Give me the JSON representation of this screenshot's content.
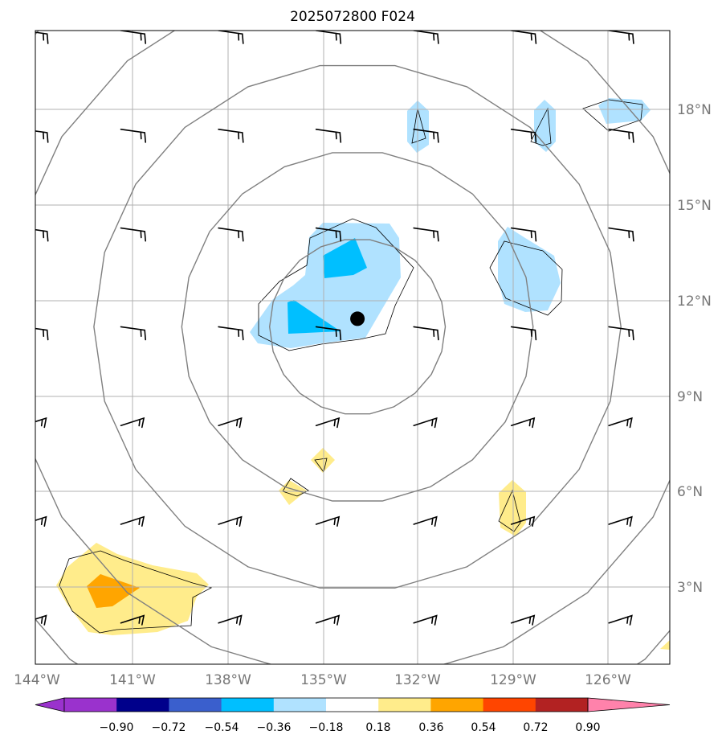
{
  "title": "2025072800 F024",
  "map": {
    "lon_range": [
      -144,
      -124.5
    ],
    "lat_range": [
      0.25,
      19.5
    ],
    "lon_ticks": [
      {
        "value": -144,
        "label": "144°W"
      },
      {
        "value": -141,
        "label": "141°W"
      },
      {
        "value": -138,
        "label": "138°W"
      },
      {
        "value": -135,
        "label": "135°W"
      },
      {
        "value": -132,
        "label": "132°W"
      },
      {
        "value": -129,
        "label": "129°W"
      },
      {
        "value": -126,
        "label": "126°W"
      }
    ],
    "lat_ticks": [
      {
        "value": 3,
        "label": "3°N"
      },
      {
        "value": 6,
        "label": "6°N"
      },
      {
        "value": 9,
        "label": "9°N"
      },
      {
        "value": 12,
        "label": "12°N"
      },
      {
        "value": 15,
        "label": "15°N"
      },
      {
        "value": 18,
        "label": "18°N"
      }
    ],
    "gridlines": true,
    "center_marker": {
      "lon": -134.1,
      "lat": 10.5
    },
    "range_rings_deg": [
      2.7,
      5.4,
      8.1,
      10.8,
      13.5
    ],
    "range_ring_color": "#808080",
    "wind_barb_lons": [
      -144,
      -141,
      -138,
      -135,
      -132,
      -129,
      -126
    ],
    "wind_barb_lats": [
      1.5,
      4.5,
      7.5,
      10.5,
      13.5,
      16.5,
      19.5
    ],
    "barb_color": "#000000"
  },
  "colorbar": {
    "ticks": [
      "−0.90",
      "−0.72",
      "−0.54",
      "−0.36",
      "−0.18",
      "0.18",
      "0.36",
      "0.54",
      "0.72",
      "0.90"
    ],
    "colors": [
      "#9a32cd",
      "#00008b",
      "#3a5fcd",
      "#00bfff",
      "#b0e2ff",
      "#ffffff",
      "#ffec8b",
      "#ffa500",
      "#ff4500",
      "#b22222",
      "#ff82ab"
    ]
  },
  "chart_data": {
    "type": "heatmap",
    "title": "2025072800 F024",
    "contour_levels": [
      -0.9,
      -0.72,
      -0.54,
      -0.36,
      -0.18,
      0.18,
      0.36,
      0.54,
      0.72,
      0.9
    ],
    "anomaly_areas": [
      {
        "lon": -133.8,
        "lat": 12.6,
        "value": -0.45
      },
      {
        "lon": -132,
        "lat": 17.3,
        "value": -0.25
      },
      {
        "lon": -128.2,
        "lat": 17.3,
        "value": -0.25
      },
      {
        "lon": -125.8,
        "lat": 17.9,
        "value": -0.25
      },
      {
        "lon": -128.7,
        "lat": 12.8,
        "value": -0.25
      },
      {
        "lon": -135,
        "lat": 7,
        "value": 0.25
      },
      {
        "lon": -135.9,
        "lat": 6.0,
        "value": 0.25
      },
      {
        "lon": -128.9,
        "lat": 5.3,
        "value": 0.25
      },
      {
        "lon": -141.5,
        "lat": 3.0,
        "value": 0.4
      },
      {
        "lon": -124.7,
        "lat": 1.1,
        "value": 0.25
      }
    ]
  }
}
